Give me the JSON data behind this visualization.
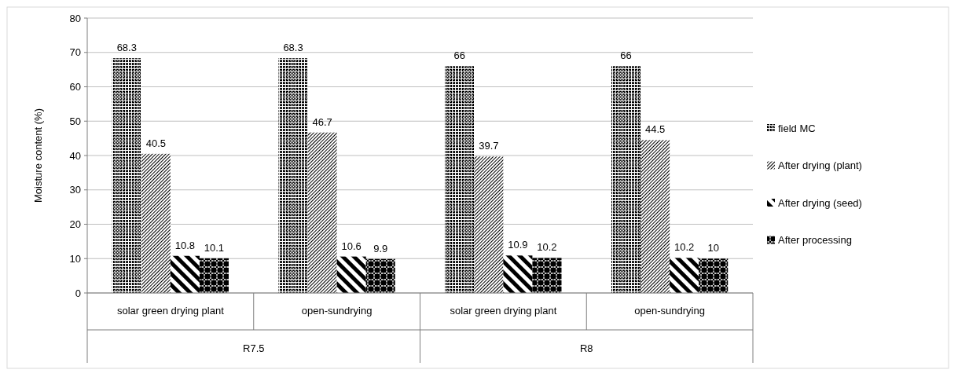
{
  "chart_data": {
    "type": "bar",
    "ylabel": "Moisture content (%)",
    "categories": [
      "solar green drying plant",
      "open-sundrying",
      "solar green drying plant",
      "open-sundrying"
    ],
    "series": [
      {
        "name": "field MC",
        "color": "#000000",
        "values": [
          68.3,
          68.3,
          66,
          66
        ]
      },
      {
        "name": "After drying (plant)",
        "color": "#000000",
        "values": [
          40.5,
          46.7,
          39.7,
          44.5
        ]
      },
      {
        "name": "After drying (seed)",
        "color": "#000000",
        "values": [
          10.8,
          10.6,
          10.9,
          10.2
        ]
      },
      {
        "name": "After processing",
        "color": "#000000",
        "values": [
          10.1,
          9.9,
          10.2,
          10
        ]
      }
    ],
    "annotations": [
      "R7.5",
      "R8"
    ],
    "ylim": [
      0,
      80
    ],
    "yticks": [
      0,
      10,
      20,
      30,
      40,
      50,
      60,
      70,
      80
    ],
    "grid": "y",
    "legend": "right",
    "data_labels": true
  }
}
